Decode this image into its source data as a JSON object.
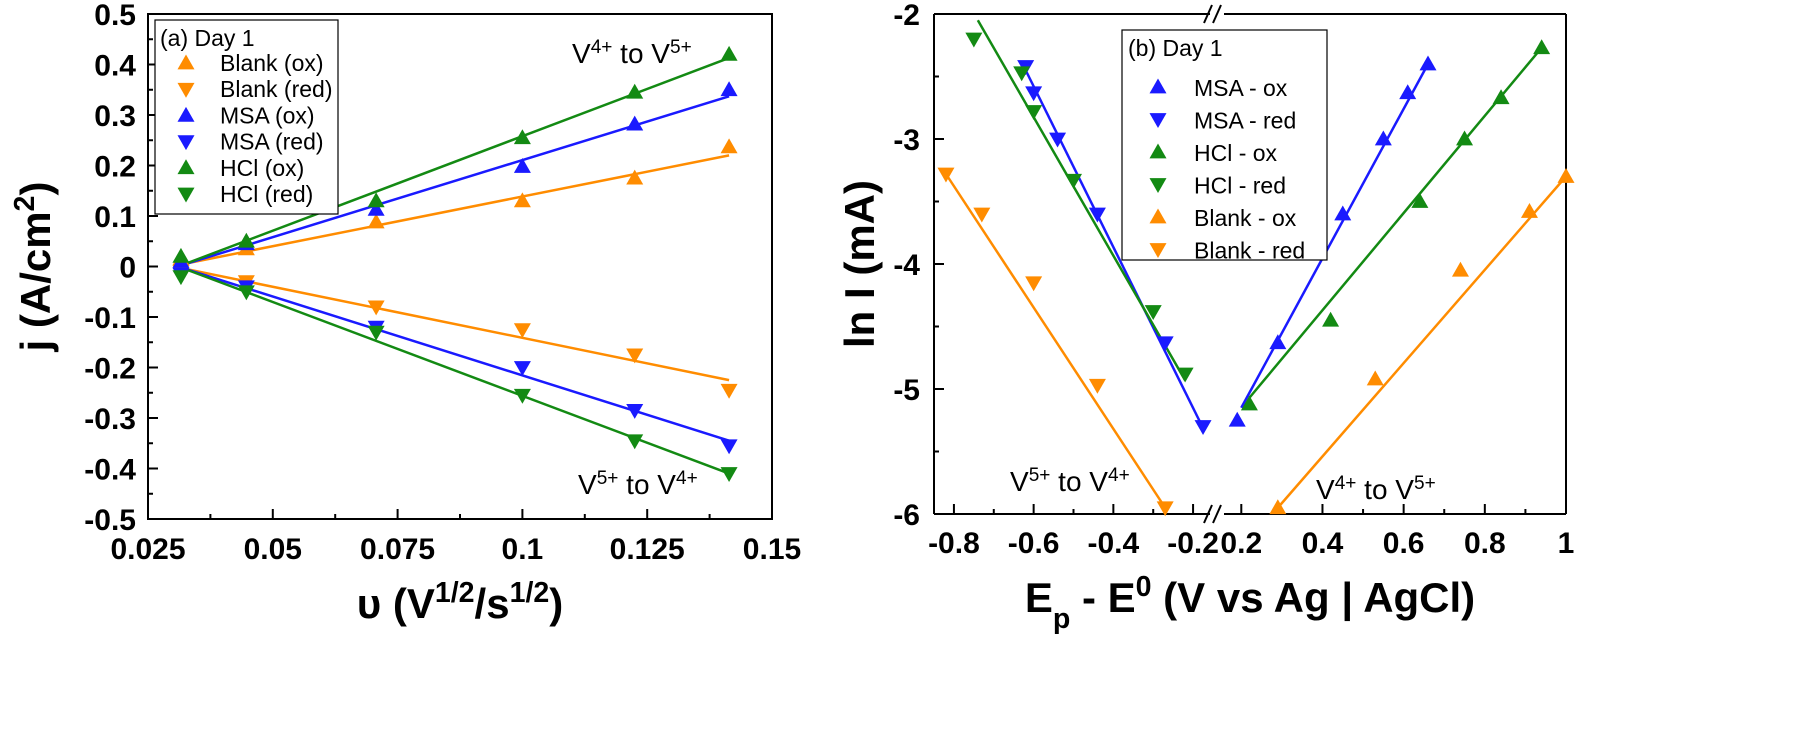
{
  "colors": {
    "Blank": "#ff8c00",
    "MSA": "#1a1aff",
    "HCl": "#138a13"
  },
  "chart_data": [
    {
      "type": "scatter",
      "panel": "(a) Day 1",
      "title": "",
      "xlabel_parts": [
        "υ (V",
        "1/2",
        "/s",
        "1/2",
        ")"
      ],
      "ylabel_parts": [
        "j (A/cm",
        "2",
        ")"
      ],
      "xlim": [
        0.025,
        0.15
      ],
      "ylim": [
        -0.5,
        0.5
      ],
      "xticks": [
        "0.025",
        "0.05",
        "0.075",
        "0.1",
        "0.125",
        "0.15"
      ],
      "yticks": [
        "0.5",
        "0.4",
        "0.3",
        "0.2",
        "0.1",
        "0",
        "-0.1",
        "-0.2",
        "-0.3",
        "-0.4",
        "-0.5"
      ],
      "legend": {
        "title": "(a) Day 1",
        "placement": "top-left"
      },
      "annotations": [
        {
          "parts": [
            "V",
            "4+",
            " to V",
            "5+"
          ],
          "at": "top-right"
        },
        {
          "parts": [
            "V",
            "5+",
            " to V",
            "4+"
          ],
          "at": "bottom-right"
        }
      ],
      "series": [
        {
          "name": "Blank (ox)",
          "group": "Blank",
          "marker": "up",
          "x": [
            0.0316,
            0.0447,
            0.0707,
            0.1,
            0.1225,
            0.1414
          ],
          "y": [
            0.015,
            0.035,
            0.088,
            0.13,
            0.175,
            0.237
          ],
          "fit": [
            [
              0.0316,
              0.004
            ],
            [
              0.1414,
              0.22
            ]
          ]
        },
        {
          "name": "Blank (red)",
          "group": "Blank",
          "marker": "down",
          "x": [
            0.0316,
            0.0447,
            0.0707,
            0.1,
            0.1225,
            0.1414
          ],
          "y": [
            -0.01,
            -0.03,
            -0.08,
            -0.125,
            -0.175,
            -0.245
          ],
          "fit": [
            [
              0.0316,
              -0.003
            ],
            [
              0.1414,
              -0.225
            ]
          ]
        },
        {
          "name": "MSA (ox)",
          "group": "MSA",
          "marker": "up",
          "x": [
            0.0316,
            0.0447,
            0.0707,
            0.1,
            0.1225,
            0.1414
          ],
          "y": [
            0.01,
            0.045,
            0.113,
            0.198,
            0.282,
            0.35
          ],
          "fit": [
            [
              0.0316,
              0.002
            ],
            [
              0.1414,
              0.337
            ]
          ]
        },
        {
          "name": "MSA (red)",
          "group": "MSA",
          "marker": "down",
          "x": [
            0.0316,
            0.0447,
            0.0707,
            0.1,
            0.1225,
            0.1414
          ],
          "y": [
            -0.015,
            -0.04,
            -0.12,
            -0.2,
            -0.285,
            -0.355
          ],
          "fit": [
            [
              0.0316,
              -0.002
            ],
            [
              0.1414,
              -0.345
            ]
          ]
        },
        {
          "name": "HCl (ox)",
          "group": "HCl",
          "marker": "up",
          "x": [
            0.0316,
            0.0447,
            0.0707,
            0.1,
            0.1225,
            0.1414
          ],
          "y": [
            0.02,
            0.05,
            0.13,
            0.255,
            0.345,
            0.42
          ],
          "fit": [
            [
              0.0316,
              0.002
            ],
            [
              0.1414,
              0.413
            ]
          ]
        },
        {
          "name": "HCl (red)",
          "group": "HCl",
          "marker": "down",
          "x": [
            0.0316,
            0.0447,
            0.0707,
            0.1,
            0.1225,
            0.1414
          ],
          "y": [
            -0.02,
            -0.05,
            -0.13,
            -0.255,
            -0.345,
            -0.41
          ],
          "fit": [
            [
              0.0316,
              -0.002
            ],
            [
              0.1414,
              -0.41
            ]
          ]
        }
      ]
    },
    {
      "type": "scatter",
      "panel": "(b) Day 1",
      "title": "",
      "xlabel_parts": [
        "E",
        "p",
        " - E",
        "0",
        " (V vs Ag | AgCl)"
      ],
      "ylabel": "ln I (mA)",
      "ylim": [
        -6,
        -2
      ],
      "x_axis_break": {
        "left_range": [
          -0.85,
          -0.15
        ],
        "right_range": [
          0.15,
          1.0
        ]
      },
      "xticks_left": [
        "-0.8",
        "-0.6",
        "-0.4",
        "-0.2"
      ],
      "xticks_right": [
        "0.2",
        "0.4",
        "0.6",
        "0.8",
        "1"
      ],
      "yticks": [
        "-2",
        "-3",
        "-4",
        "-5",
        "-6"
      ],
      "legend": {
        "title": "(b) Day 1",
        "placement": "top-center"
      },
      "annotations": [
        {
          "parts": [
            "V",
            "5+",
            " to V",
            "4+"
          ],
          "at": "bottom-left"
        },
        {
          "parts": [
            "V",
            "4+",
            " to V",
            "5+"
          ],
          "at": "bottom-right"
        }
      ],
      "series": [
        {
          "name": "MSA - ox",
          "group": "MSA",
          "marker": "up",
          "x": [
            0.19,
            0.29,
            0.45,
            0.55,
            0.61,
            0.66
          ],
          "y": [
            -5.25,
            -4.63,
            -3.6,
            -3.0,
            -2.63,
            -2.4
          ],
          "fit": [
            [
              0.2,
              -5.15
            ],
            [
              0.66,
              -2.4
            ]
          ]
        },
        {
          "name": "MSA - red",
          "group": "MSA",
          "marker": "down",
          "x": [
            -0.175,
            -0.27,
            -0.44,
            -0.54,
            -0.6,
            -0.62
          ],
          "y": [
            -5.3,
            -4.63,
            -3.6,
            -3.0,
            -2.63,
            -2.42
          ],
          "fit": [
            [
              -0.18,
              -5.28
            ],
            [
              -0.62,
              -2.45
            ]
          ]
        },
        {
          "name": "HCl - ox",
          "group": "HCl",
          "marker": "up",
          "x": [
            0.22,
            0.42,
            0.64,
            0.75,
            0.84,
            0.94
          ],
          "y": [
            -5.12,
            -4.45,
            -3.5,
            -3.0,
            -2.67,
            -2.27
          ],
          "fit": [
            [
              0.22,
              -5.07
            ],
            [
              0.94,
              -2.27
            ]
          ]
        },
        {
          "name": "HCl - red",
          "group": "HCl",
          "marker": "down",
          "x": [
            -0.22,
            -0.3,
            -0.5,
            -0.6,
            -0.63,
            -0.75
          ],
          "y": [
            -4.88,
            -4.38,
            -3.33,
            -2.78,
            -2.47,
            -2.2
          ],
          "fit": [
            [
              -0.22,
              -4.93
            ],
            [
              -0.74,
              -2.05
            ]
          ]
        },
        {
          "name": "Blank - ox",
          "group": "Blank",
          "marker": "up",
          "x": [
            0.29,
            0.53,
            0.74,
            0.91,
            1.0
          ],
          "y": [
            -5.95,
            -4.92,
            -4.05,
            -3.58,
            -3.3
          ],
          "fit": [
            [
              0.29,
              -5.95
            ],
            [
              1.0,
              -3.3
            ]
          ]
        },
        {
          "name": "Blank - red",
          "group": "Blank",
          "marker": "down",
          "x": [
            -0.27,
            -0.44,
            -0.6,
            -0.73,
            -0.82
          ],
          "y": [
            -5.95,
            -4.97,
            -4.15,
            -3.6,
            -3.28
          ],
          "fit": [
            [
              -0.27,
              -5.95
            ],
            [
              -0.82,
              -3.28
            ]
          ]
        }
      ]
    }
  ]
}
